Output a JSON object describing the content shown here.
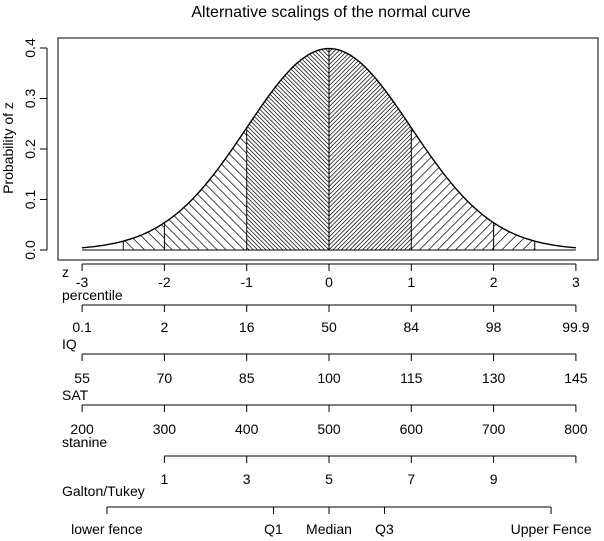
{
  "chart_data": {
    "type": "area",
    "title": "Alternative scalings of the normal curve",
    "ylabel": "Probability of z",
    "xlim": [
      -3,
      3
    ],
    "ylim": [
      0,
      0.4
    ],
    "y_ticks": [
      "0.0",
      "0.1",
      "0.2",
      "0.3",
      "0.4"
    ],
    "y_tick_values": [
      0,
      0.1,
      0.2,
      0.3,
      0.4
    ],
    "curve": {
      "function": "normal density",
      "mean": 0,
      "sd": 1
    },
    "shaded_regions": [
      {
        "from": -2.5,
        "to": -2,
        "hatch": "sparse"
      },
      {
        "from": -2,
        "to": -1,
        "hatch": "medium"
      },
      {
        "from": -1,
        "to": 0,
        "hatch": "dense"
      },
      {
        "from": 0,
        "to": 1,
        "hatch": "dense"
      },
      {
        "from": 1,
        "to": 2,
        "hatch": "medium"
      },
      {
        "from": 2,
        "to": 2.5,
        "hatch": "sparse"
      }
    ],
    "scales": [
      {
        "name": "z",
        "z": [
          -3,
          -2,
          -1,
          0,
          1,
          2,
          3
        ],
        "labels": [
          "-3",
          "-2",
          "-1",
          "0",
          "1",
          "2",
          "3"
        ]
      },
      {
        "name": "percentile",
        "z": [
          -3,
          -2,
          -1,
          0,
          1,
          2,
          3
        ],
        "labels": [
          "0.1",
          "2",
          "16",
          "50",
          "84",
          "98",
          "99.9"
        ]
      },
      {
        "name": "IQ",
        "z": [
          -3,
          -2,
          -1,
          0,
          1,
          2,
          3
        ],
        "labels": [
          "55",
          "70",
          "85",
          "100",
          "115",
          "130",
          "145"
        ]
      },
      {
        "name": "SAT",
        "z": [
          -3,
          -2,
          -1,
          0,
          1,
          2,
          3
        ],
        "labels": [
          "200",
          "300",
          "400",
          "500",
          "600",
          "700",
          "800"
        ]
      },
      {
        "name": "stanine",
        "z": [
          -2,
          -1,
          0,
          1,
          2,
          3
        ],
        "labels": [
          "1",
          "3",
          "5",
          "7",
          "9",
          ""
        ]
      },
      {
        "name": "Galton/Tukey",
        "z": [
          -2.698,
          -0.674,
          0,
          0.674,
          2.698
        ],
        "labels": [
          "lower fence",
          "Q1",
          "Median",
          "Q3",
          "Upper Fence"
        ]
      }
    ]
  }
}
